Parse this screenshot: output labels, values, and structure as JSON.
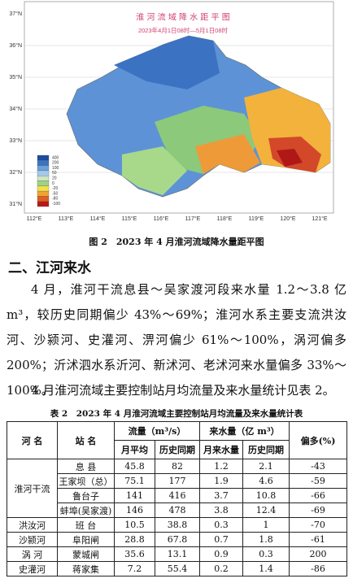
{
  "figure": {
    "map_title": "淮 河 流 域 降 水 距 平 图",
    "map_subtitle": "2023年4月1日08时—5月1日08时",
    "lat_labels": [
      "37°N",
      "36°N",
      "35°N",
      "34°N",
      "33°N",
      "32°N",
      "31°N"
    ],
    "lon_labels": [
      "112°E",
      "113°E",
      "114°E",
      "115°E",
      "116°E",
      "117°E",
      "118°E",
      "119°E",
      "120°E",
      "121°E"
    ],
    "legend_labels": [
      "400",
      "200",
      "100",
      "50",
      "20",
      "0",
      "-20",
      "-50",
      "-80",
      "-100"
    ],
    "caption": "图 2　2023 年 4 月淮河流域降水量距平图"
  },
  "section_heading": "二、江河来水",
  "paragraphs": [
    "4 月，淮河干流息县～吴家渡河段来水量 1.2～3.8 亿 m³，较历史同期偏少 43%～69%；淮河水系主要支流洪汝河、沙颍河、史灌河、淠河偏少 61%～100%，涡河偏多 200%；沂沭泗水系沂河、新沭河、老沭河来水量偏多 33%～100%。",
    "4 月淮河流域主要控制站月均流量及来水量统计见表 2。"
  ],
  "table": {
    "title": "表 2　2023 年 4 月淮河流域主要控制站月均流量及来水量统计表",
    "header_top": [
      "河 名",
      "站 名",
      "流量（m³/s）",
      "来水量（亿 m³）",
      "偏多(%)"
    ],
    "header_sub": [
      "月平均",
      "历史同期",
      "月来水量",
      "历史同期"
    ],
    "groups": [
      {
        "river": "淮河干流",
        "stations": [
          [
            "息 县",
            "45.8",
            "82",
            "1.2",
            "2.1",
            "-43"
          ],
          [
            "王家坝（总）",
            "75.1",
            "177",
            "1.9",
            "4.6",
            "-59"
          ],
          [
            "鲁台子",
            "141",
            "416",
            "3.7",
            "10.8",
            "-66"
          ],
          [
            "蚌埠(吴家渡)",
            "146",
            "478",
            "3.8",
            "12.4",
            "-69"
          ]
        ]
      },
      {
        "river": "洪汝河",
        "stations": [
          [
            "班 台",
            "10.5",
            "38.8",
            "0.3",
            "1",
            "-70"
          ]
        ]
      },
      {
        "river": "沙颍河",
        "stations": [
          [
            "阜阳闸",
            "28.8",
            "67.8",
            "0.7",
            "1.8",
            "-61"
          ]
        ]
      },
      {
        "river": "涡 河",
        "stations": [
          [
            "蒙城闸",
            "35.6",
            "13.1",
            "0.9",
            "0.3",
            "200"
          ]
        ]
      },
      {
        "river": "史灌河",
        "stations": [
          [
            "蒋家集",
            "7.2",
            "55.4",
            "0.2",
            "1.4",
            "-86"
          ]
        ]
      }
    ]
  }
}
